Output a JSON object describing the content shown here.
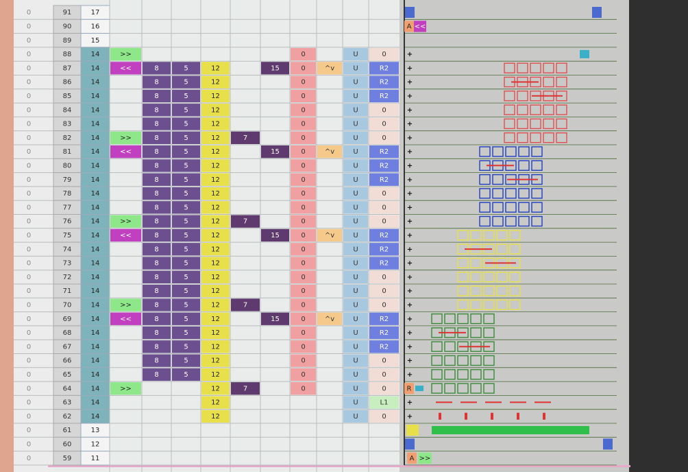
{
  "rows": [
    {
      "num": "91",
      "val": "17",
      "left": "0"
    },
    {
      "num": "90",
      "val": "16",
      "left": "0"
    },
    {
      "num": "89",
      "val": "15",
      "left": "0"
    },
    {
      "num": "88",
      "val": "14",
      "left": "0",
      "cells": {
        "c": ">>",
        "i": "0",
        "k": "U",
        "l": "0"
      }
    },
    {
      "num": "87",
      "val": "14",
      "left": "0",
      "cells": {
        "c": "<<",
        "d": "8",
        "e": "5",
        "f": "12",
        "h": "15",
        "i": "0",
        "j": "^v",
        "k": "U",
        "l": "R2"
      }
    },
    {
      "num": "86",
      "val": "14",
      "left": "0",
      "cells": {
        "d": "8",
        "e": "5",
        "f": "12",
        "i": "0",
        "k": "U",
        "l": "R2"
      }
    },
    {
      "num": "85",
      "val": "14",
      "left": "0",
      "cells": {
        "d": "8",
        "e": "5",
        "f": "12",
        "i": "0",
        "k": "U",
        "l": "R2"
      }
    },
    {
      "num": "84",
      "val": "14",
      "left": "0",
      "cells": {
        "d": "8",
        "e": "5",
        "f": "12",
        "i": "0",
        "k": "U",
        "l": "0"
      }
    },
    {
      "num": "83",
      "val": "14",
      "left": "0",
      "cells": {
        "d": "8",
        "e": "5",
        "f": "12",
        "i": "0",
        "k": "U",
        "l": "0"
      }
    },
    {
      "num": "82",
      "val": "14",
      "left": "0",
      "cells": {
        "c": ">>",
        "d": "8",
        "e": "5",
        "f": "12",
        "g": "7",
        "i": "0",
        "k": "U",
        "l": "0"
      }
    },
    {
      "num": "81",
      "val": "14",
      "left": "0",
      "cells": {
        "c": "<<",
        "d": "8",
        "e": "5",
        "f": "12",
        "h": "15",
        "i": "0",
        "j": "^v",
        "k": "U",
        "l": "R2"
      }
    },
    {
      "num": "80",
      "val": "14",
      "left": "0",
      "cells": {
        "d": "8",
        "e": "5",
        "f": "12",
        "i": "0",
        "k": "U",
        "l": "R2"
      }
    },
    {
      "num": "79",
      "val": "14",
      "left": "0",
      "cells": {
        "d": "8",
        "e": "5",
        "f": "12",
        "i": "0",
        "k": "U",
        "l": "R2"
      }
    },
    {
      "num": "78",
      "val": "14",
      "left": "0",
      "cells": {
        "d": "8",
        "e": "5",
        "f": "12",
        "i": "0",
        "k": "U",
        "l": "0"
      }
    },
    {
      "num": "77",
      "val": "14",
      "left": "0",
      "cells": {
        "d": "8",
        "e": "5",
        "f": "12",
        "i": "0",
        "k": "U",
        "l": "0"
      }
    },
    {
      "num": "76",
      "val": "14",
      "left": "0",
      "cells": {
        "c": ">>",
        "d": "8",
        "e": "5",
        "f": "12",
        "g": "7",
        "i": "0",
        "k": "U",
        "l": "0"
      }
    },
    {
      "num": "75",
      "val": "14",
      "left": "0",
      "cells": {
        "c": "<<",
        "d": "8",
        "e": "5",
        "f": "12",
        "h": "15",
        "i": "0",
        "j": "^v",
        "k": "U",
        "l": "R2"
      }
    },
    {
      "num": "74",
      "val": "14",
      "left": "0",
      "cells": {
        "d": "8",
        "e": "5",
        "f": "12",
        "i": "0",
        "k": "U",
        "l": "R2"
      }
    },
    {
      "num": "73",
      "val": "14",
      "left": "0",
      "cells": {
        "d": "8",
        "e": "5",
        "f": "12",
        "i": "0",
        "k": "U",
        "l": "R2"
      }
    },
    {
      "num": "72",
      "val": "14",
      "left": "0",
      "cells": {
        "d": "8",
        "e": "5",
        "f": "12",
        "i": "0",
        "k": "U",
        "l": "0"
      }
    },
    {
      "num": "71",
      "val": "14",
      "left": "0",
      "cells": {
        "d": "8",
        "e": "5",
        "f": "12",
        "i": "0",
        "k": "U",
        "l": "0"
      }
    },
    {
      "num": "70",
      "val": "14",
      "left": "0",
      "cells": {
        "c": ">>",
        "d": "8",
        "e": "5",
        "f": "12",
        "g": "7",
        "i": "0",
        "k": "U",
        "l": "0"
      }
    },
    {
      "num": "69",
      "val": "14",
      "left": "0",
      "cells": {
        "c": "<<",
        "d": "8",
        "e": "5",
        "f": "12",
        "h": "15",
        "i": "0",
        "j": "^v",
        "k": "U",
        "l": "R2"
      }
    },
    {
      "num": "68",
      "val": "14",
      "left": "0",
      "cells": {
        "d": "8",
        "e": "5",
        "f": "12",
        "i": "0",
        "k": "U",
        "l": "R2"
      }
    },
    {
      "num": "67",
      "val": "14",
      "left": "0",
      "cells": {
        "d": "8",
        "e": "5",
        "f": "12",
        "i": "0",
        "k": "U",
        "l": "R2"
      }
    },
    {
      "num": "66",
      "val": "14",
      "left": "0",
      "cells": {
        "d": "8",
        "e": "5",
        "f": "12",
        "i": "0",
        "k": "U",
        "l": "0"
      }
    },
    {
      "num": "65",
      "val": "14",
      "left": "0",
      "cells": {
        "d": "8",
        "e": "5",
        "f": "12",
        "i": "0",
        "k": "U",
        "l": "0"
      }
    },
    {
      "num": "64",
      "val": "14",
      "left": "0",
      "cells": {
        "c": ">>",
        "f": "12",
        "g": "7",
        "i": "0",
        "k": "U",
        "l": "0"
      }
    },
    {
      "num": "63",
      "val": "14",
      "left": "0",
      "cells": {
        "f": "12",
        "k": "U",
        "l": "L1"
      }
    },
    {
      "num": "62",
      "val": "14",
      "left": "0",
      "cells": {
        "f": "12",
        "k": "U",
        "l": "0"
      }
    },
    {
      "num": "61",
      "val": "13",
      "left": "0"
    },
    {
      "num": "60",
      "val": "12",
      "left": "0"
    },
    {
      "num": "59",
      "val": "11",
      "left": "0"
    }
  ],
  "pane": {
    "top_tag": "A",
    "top_arrows": "<<",
    "r_tag": "R",
    "bottom_tag": "A",
    "bottom_arrows": ">>"
  }
}
